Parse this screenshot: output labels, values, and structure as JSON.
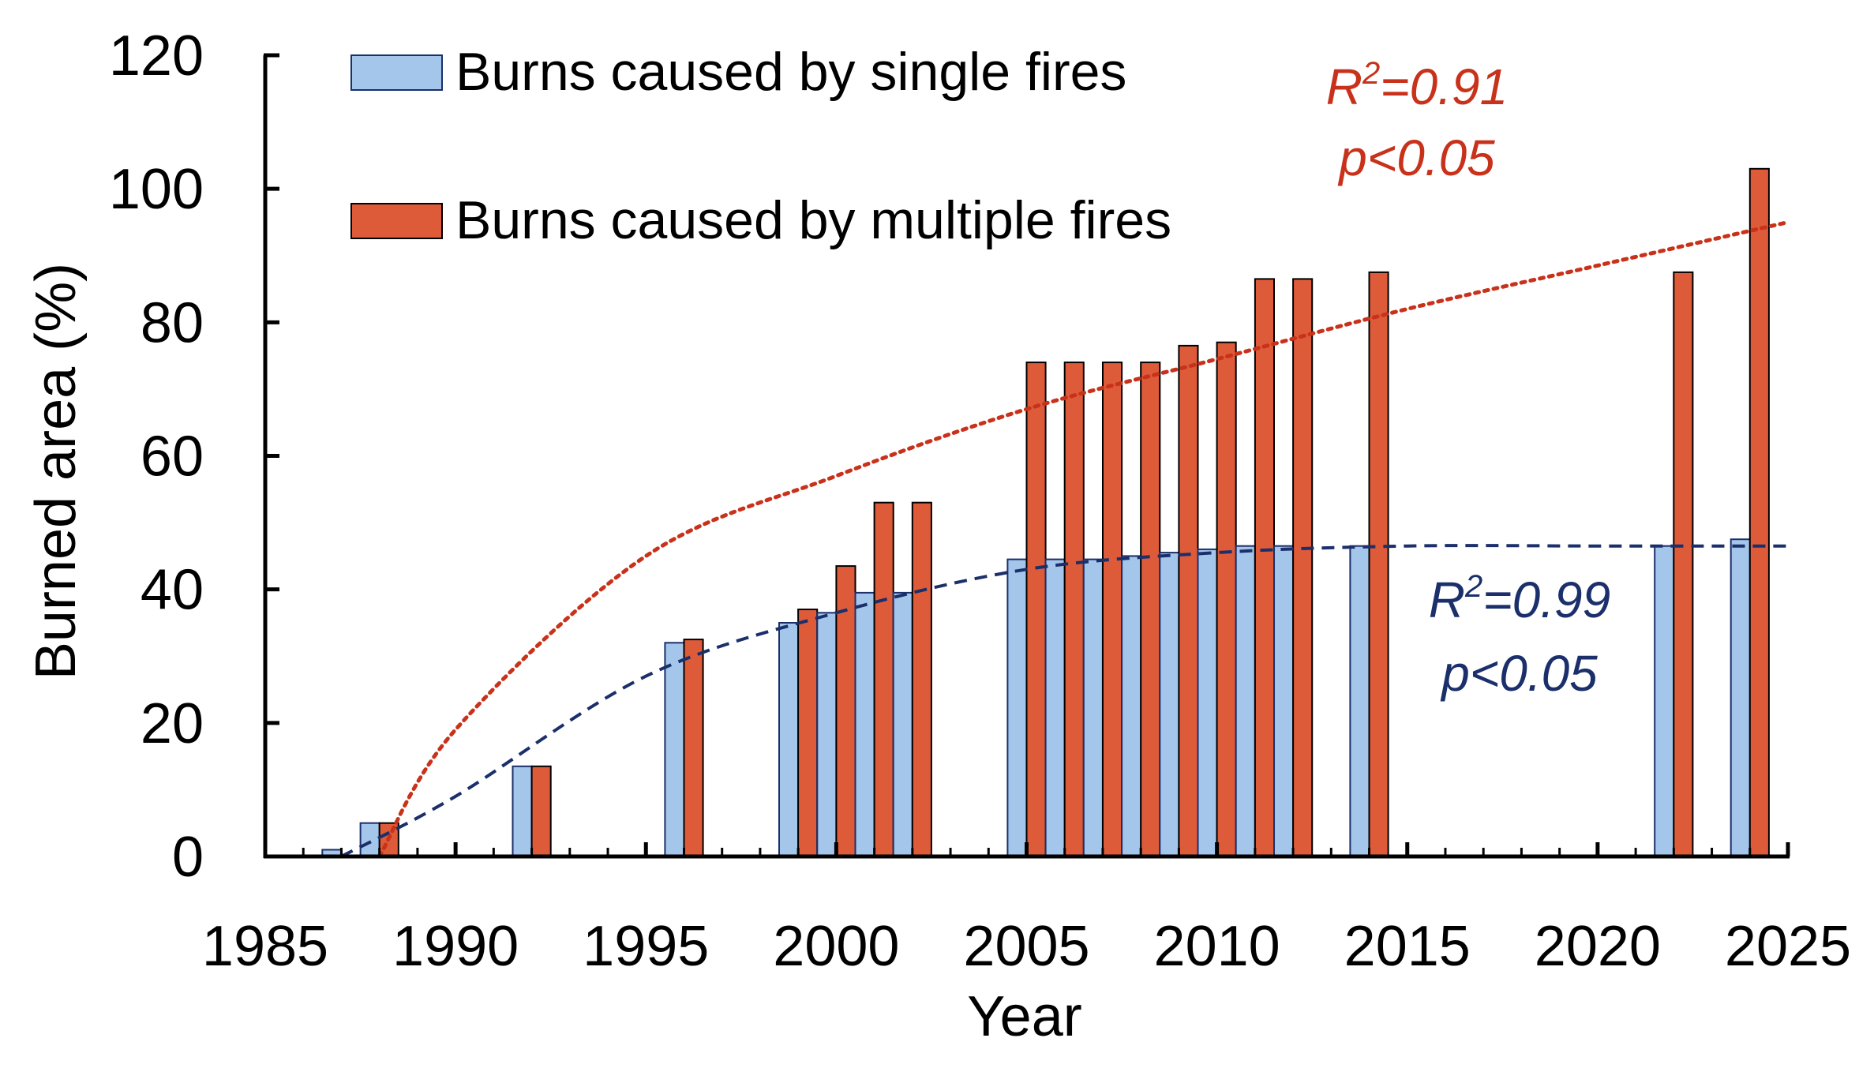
{
  "chart_data": {
    "type": "bar",
    "xlabel": "Year",
    "ylabel": "Burned area (%)",
    "xlim": [
      1985,
      2025
    ],
    "ylim": [
      0,
      120
    ],
    "x_ticks": [
      "1985",
      "1990",
      "1995",
      "2000",
      "2005",
      "2010",
      "2015",
      "2020",
      "2025"
    ],
    "y_ticks": [
      "0",
      "20",
      "40",
      "60",
      "80",
      "100",
      "120"
    ],
    "grid": false,
    "legend_position": "top-left",
    "x": [
      1987,
      1988,
      1992,
      1996,
      1999,
      2000,
      2001,
      2002,
      2005,
      2006,
      2007,
      2008,
      2009,
      2010,
      2011,
      2012,
      2014,
      2022,
      2024
    ],
    "series": [
      {
        "name": "Burns caused by single fires",
        "color": "#A4C6EA",
        "values": [
          1,
          5,
          13.5,
          32,
          35,
          36.5,
          39.5,
          39.5,
          44.5,
          44.5,
          44.5,
          45,
          45.5,
          46,
          46.5,
          46.5,
          46.5,
          46.5,
          47.5
        ]
      },
      {
        "name": "Burns caused by multiple fires",
        "color": "#DE5B3A",
        "values": [
          0,
          5,
          13.5,
          32.5,
          37,
          43.5,
          53,
          53,
          74,
          74,
          74,
          74,
          76.5,
          77,
          86.5,
          86.5,
          87.5,
          87.5,
          103
        ]
      }
    ],
    "trendlines": [
      {
        "series": "Burns caused by single fires",
        "style": "dashed",
        "color": "#1B2F6B",
        "r2_label": "=0.99",
        "p_label": "p<0.05",
        "x": [
          1987,
          1990,
          1995,
          2000,
          2005,
          2010,
          2015,
          2020,
          2025
        ],
        "y": [
          0,
          9,
          27,
          36.5,
          43,
          45.5,
          46.5,
          46.5,
          46.5
        ]
      },
      {
        "series": "Burns caused by multiple fires",
        "style": "dotted",
        "color": "#C8321B",
        "r2_label": "=0.91",
        "p_label": "p<0.05",
        "x": [
          1988,
          1990,
          1995,
          2000,
          2005,
          2010,
          2015,
          2020,
          2025
        ],
        "y": [
          0,
          19,
          45,
          57,
          67,
          74.5,
          82,
          88.5,
          95
        ]
      }
    ]
  }
}
